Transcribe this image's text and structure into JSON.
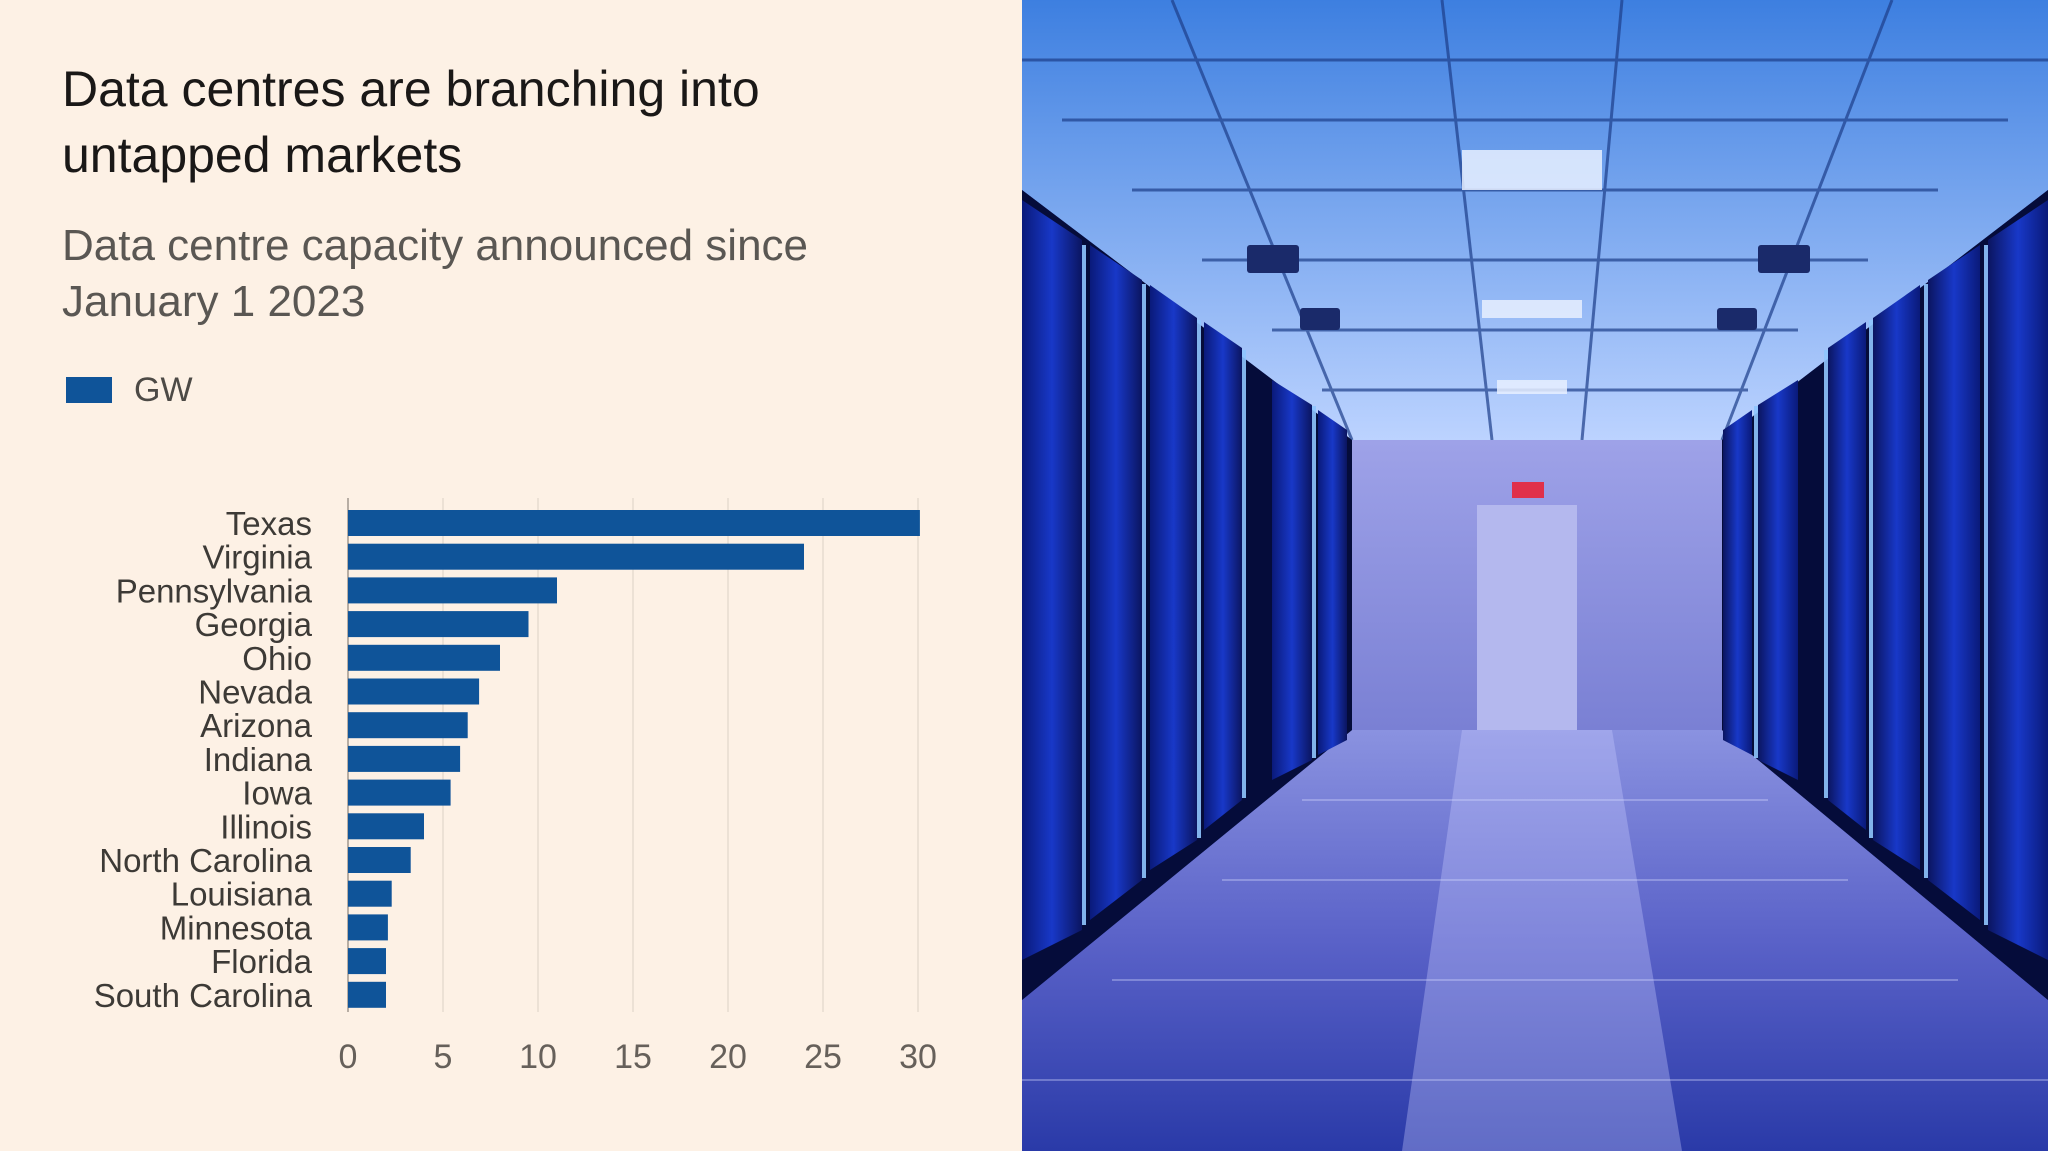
{
  "chart_data": {
    "type": "bar",
    "orientation": "horizontal",
    "title": "Data centres are branching into untapped markets",
    "subtitle": "Data centre capacity announced since January 1 2023",
    "legend": {
      "label": "GW",
      "placement": "top-left"
    },
    "categories": [
      "Texas",
      "Virginia",
      "Pennsylvania",
      "Georgia",
      "Ohio",
      "Nevada",
      "Arizona",
      "Indiana",
      "Iowa",
      "Illinois",
      "North Carolina",
      "Louisiana",
      "Minnesota",
      "Florida",
      "South Carolina"
    ],
    "series": [
      {
        "name": "GW",
        "values": [
          30.1,
          24.0,
          11.0,
          9.5,
          8.0,
          6.9,
          6.3,
          5.9,
          5.4,
          4.0,
          3.3,
          2.3,
          2.1,
          2.0,
          2.0
        ]
      }
    ],
    "x_ticks": [
      0,
      5,
      10,
      15,
      20,
      25,
      30
    ],
    "xlim": [
      0,
      30
    ],
    "grid": true
  },
  "colors": {
    "bar": "#0f5499",
    "panel_background": "#fdf1e5",
    "gridline": "#e6dcd0"
  }
}
